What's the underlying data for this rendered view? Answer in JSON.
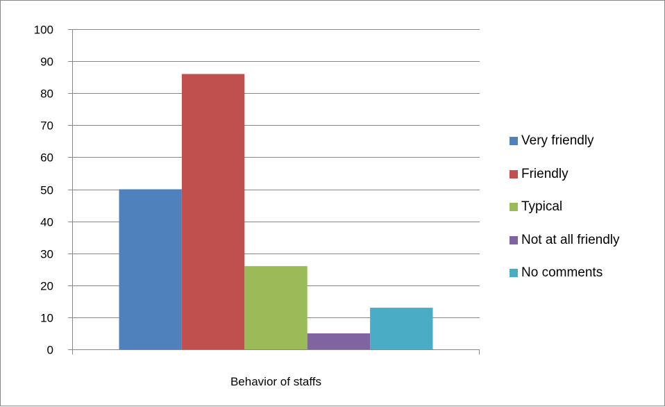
{
  "chart_data": {
    "type": "bar",
    "categories": [
      "Behavior of staffs"
    ],
    "series": [
      {
        "name": "Very friendly",
        "values": [
          50
        ],
        "color": "#4F81BD"
      },
      {
        "name": "Friendly",
        "values": [
          86
        ],
        "color": "#C0504D"
      },
      {
        "name": "Typical",
        "values": [
          26
        ],
        "color": "#9BBB59"
      },
      {
        "name": "Not at all friendly",
        "values": [
          5
        ],
        "color": "#8064A2"
      },
      {
        "name": "No comments",
        "values": [
          13
        ],
        "color": "#4BACC6"
      }
    ],
    "yticks": [
      0,
      10,
      20,
      30,
      40,
      50,
      60,
      70,
      80,
      90,
      100
    ],
    "ylim": [
      0,
      100
    ],
    "grid": true,
    "legend_position": "right"
  }
}
